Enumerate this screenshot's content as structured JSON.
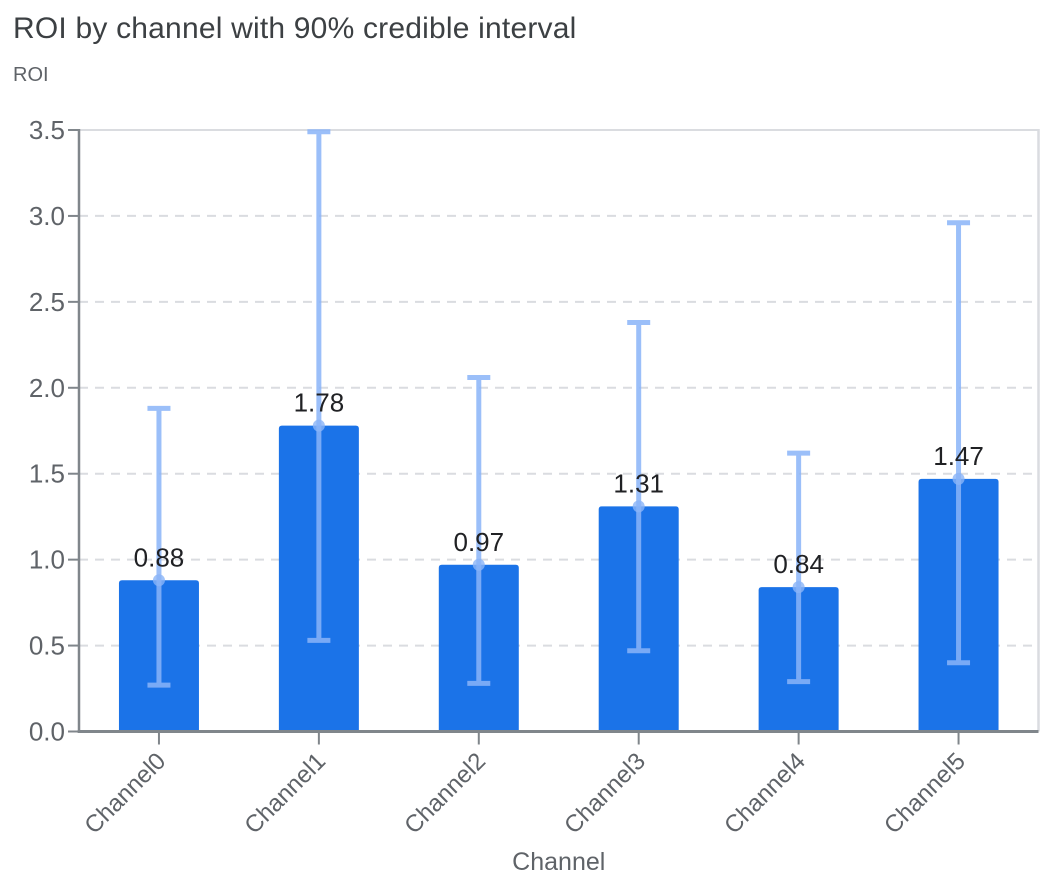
{
  "chart_data": {
    "type": "bar",
    "title": "ROI by channel with 90% credible interval",
    "ylabel": "ROI",
    "xlabel": "Channel",
    "categories": [
      "Channel0",
      "Channel1",
      "Channel2",
      "Channel3",
      "Channel4",
      "Channel5"
    ],
    "series": [
      {
        "name": "ROI",
        "values": [
          0.88,
          1.78,
          0.97,
          1.31,
          0.84,
          1.47
        ],
        "value_labels": [
          "0.88",
          "1.78",
          "0.97",
          "1.31",
          "0.84",
          "1.47"
        ],
        "ci90_lower": [
          0.27,
          0.53,
          0.28,
          0.47,
          0.29,
          0.4
        ],
        "ci90_upper": [
          1.88,
          3.49,
          2.06,
          2.38,
          1.62,
          2.96
        ]
      }
    ],
    "ylim": [
      0,
      3.5
    ],
    "yticks": [
      0,
      0.5,
      1,
      1.5,
      2,
      2.5,
      3,
      3.5
    ],
    "ytick_labels": [
      "0.0",
      "0.5",
      "1.0",
      "1.5",
      "2.0",
      "2.5",
      "3.0",
      "3.5"
    ],
    "grid": {
      "horizontal": true,
      "style": "dashed"
    },
    "legend": "none",
    "colors": {
      "bar": "#1B73E8",
      "error_bar": "#8AB4F8",
      "value_label": "#202124",
      "axis_text": "#5F6368",
      "title": "#3C4043",
      "gridline": "#DADCE0",
      "axis_line": "#80868B"
    }
  }
}
